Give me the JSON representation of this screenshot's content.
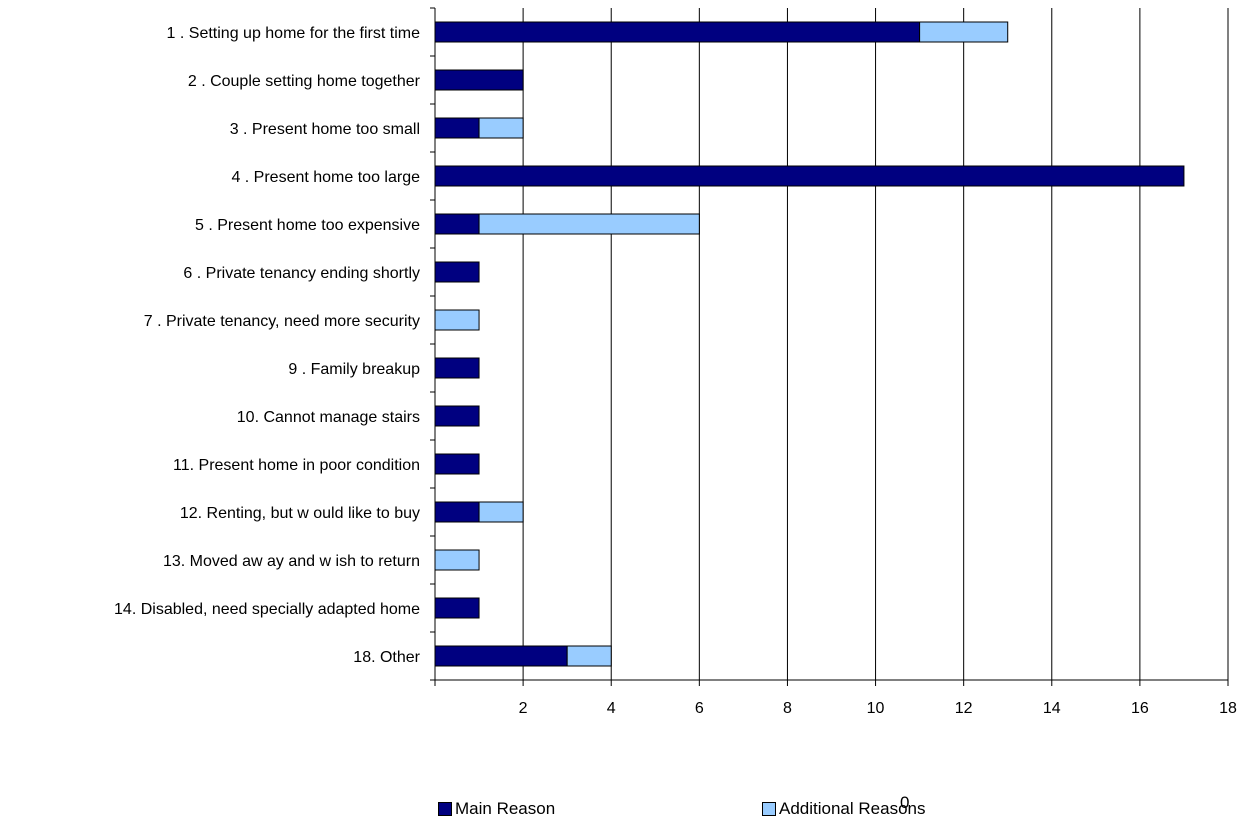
{
  "chart_data": {
    "type": "bar",
    "orientation": "horizontal",
    "stacked": true,
    "title": "",
    "xlabel": "",
    "ylabel": "",
    "xlim": [
      0,
      18
    ],
    "x_ticks": [
      "",
      "2",
      "4",
      "6",
      "8",
      "10",
      "12",
      "14",
      "16",
      "18"
    ],
    "grid": "vertical",
    "legend_position": "bottom",
    "stray_text": "0",
    "categories": [
      "1 . Setting up home for the first time",
      "2 . Couple setting home together",
      "3 . Present home too small",
      "4 . Present home too large",
      "5 . Present home too expensive",
      "6 . Private tenancy ending shortly",
      "7 . Private tenancy, need more security",
      "9 . Family breakup",
      "10. Cannot manage stairs",
      "11. Present home in poor condition",
      "12. Renting, but w ould like to buy",
      "13. Moved aw ay and w ish to return",
      "14. Disabled, need specially adapted home",
      "18. Other"
    ],
    "series": [
      {
        "name": "Main Reason",
        "color": "#000080",
        "values": [
          11,
          2,
          1,
          17,
          1,
          1,
          0,
          1,
          1,
          1,
          1,
          0,
          1,
          3
        ]
      },
      {
        "name": "Additional Reasons",
        "color": "#99ccff",
        "values": [
          2,
          0,
          1,
          0,
          5,
          0,
          1,
          0,
          0,
          0,
          1,
          1,
          0,
          1
        ]
      }
    ]
  }
}
